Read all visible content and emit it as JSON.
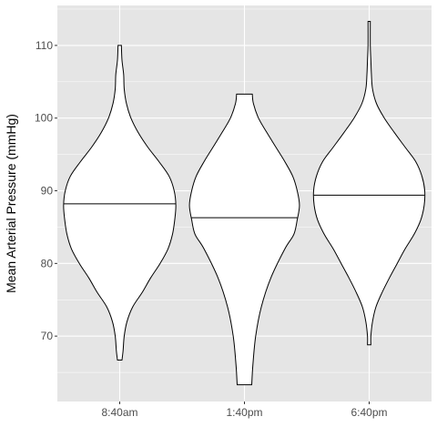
{
  "chart_data": {
    "type": "violin",
    "title": "",
    "xlabel": "",
    "ylabel": "Mean Arterial Pressure (mmHg)",
    "ylim": [
      61,
      115.5
    ],
    "yticks": [
      70,
      80,
      90,
      100,
      110
    ],
    "grid": true,
    "categories": [
      "8:40am",
      "1:40pm",
      "6:40pm"
    ],
    "series": [
      {
        "category": "8:40am",
        "median": 88.2,
        "min": 66.7,
        "max": 110.0,
        "profile": [
          [
            66.7,
            0.04
          ],
          [
            68,
            0.06
          ],
          [
            70,
            0.08
          ],
          [
            72,
            0.13
          ],
          [
            74,
            0.23
          ],
          [
            76,
            0.4
          ],
          [
            78,
            0.55
          ],
          [
            80,
            0.72
          ],
          [
            82,
            0.86
          ],
          [
            84,
            0.94
          ],
          [
            86,
            0.98
          ],
          [
            88,
            1.0
          ],
          [
            90,
            0.97
          ],
          [
            92,
            0.88
          ],
          [
            94,
            0.7
          ],
          [
            96,
            0.5
          ],
          [
            98,
            0.33
          ],
          [
            100,
            0.2
          ],
          [
            102,
            0.12
          ],
          [
            104,
            0.08
          ],
          [
            106,
            0.07
          ],
          [
            108,
            0.04
          ],
          [
            110,
            0.03
          ]
        ]
      },
      {
        "category": "1:40pm",
        "median": 86.3,
        "min": 63.3,
        "max": 103.3,
        "profile": [
          [
            63.3,
            0.13
          ],
          [
            66,
            0.15
          ],
          [
            70,
            0.2
          ],
          [
            74,
            0.3
          ],
          [
            78,
            0.47
          ],
          [
            82,
            0.72
          ],
          [
            84,
            0.88
          ],
          [
            86,
            0.94
          ],
          [
            88,
            0.98
          ],
          [
            90,
            0.94
          ],
          [
            92,
            0.86
          ],
          [
            94,
            0.72
          ],
          [
            96,
            0.56
          ],
          [
            98,
            0.4
          ],
          [
            100,
            0.25
          ],
          [
            102,
            0.16
          ],
          [
            103.3,
            0.14
          ]
        ]
      },
      {
        "category": "6:40pm",
        "median": 89.4,
        "min": 68.8,
        "max": 113.3,
        "profile": [
          [
            68.8,
            0.03
          ],
          [
            70,
            0.03
          ],
          [
            72,
            0.06
          ],
          [
            74,
            0.12
          ],
          [
            76,
            0.23
          ],
          [
            78,
            0.36
          ],
          [
            80,
            0.5
          ],
          [
            82,
            0.64
          ],
          [
            84,
            0.8
          ],
          [
            86,
            0.92
          ],
          [
            88,
            0.98
          ],
          [
            90,
            0.99
          ],
          [
            92,
            0.94
          ],
          [
            94,
            0.83
          ],
          [
            96,
            0.64
          ],
          [
            98,
            0.45
          ],
          [
            100,
            0.27
          ],
          [
            102,
            0.13
          ],
          [
            104,
            0.06
          ],
          [
            106,
            0.04
          ],
          [
            108,
            0.03
          ],
          [
            110,
            0.02
          ],
          [
            113.3,
            0.02
          ]
        ]
      }
    ]
  },
  "colors": {
    "panel_bg": "#e5e5e5",
    "grid_major": "#ffffff",
    "violin_fill": "#ffffff",
    "violin_stroke": "#000000",
    "tick_text": "#4d4d4d",
    "title_text": "#000000"
  }
}
